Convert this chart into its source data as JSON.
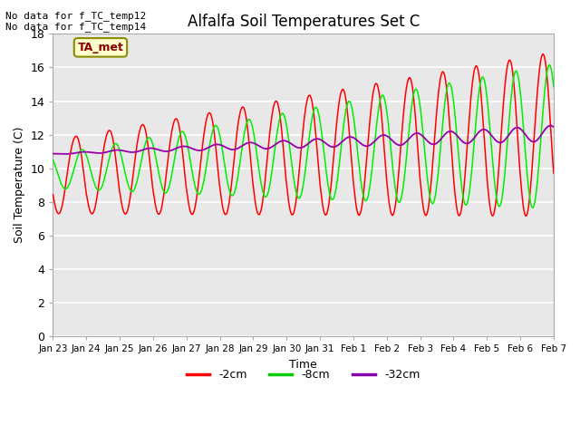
{
  "title": "Alfalfa Soil Temperatures Set C",
  "ylabel": "Soil Temperature (C)",
  "xlabel": "Time",
  "no_data_text": [
    "No data for f_TC_temp12",
    "No data for f_TC_temp14"
  ],
  "ta_met_label": "TA_met",
  "ylim": [
    0,
    18
  ],
  "yticks": [
    0,
    2,
    4,
    6,
    8,
    10,
    12,
    14,
    16,
    18
  ],
  "xtick_labels": [
    "Jan 23",
    "Jan 24",
    "Jan 25",
    "Jan 26",
    "Jan 27",
    "Jan 28",
    "Jan 29",
    "Jan 30",
    "Jan 31",
    "Feb 1",
    "Feb 2",
    "Feb 3",
    "Feb 4",
    "Feb 5",
    "Feb 6",
    "Feb 7"
  ],
  "plot_bg_color": "#e8e8e8",
  "fig_bg_color": "#ffffff",
  "legend_labels": [
    "-2cm",
    "-8cm",
    "-32cm"
  ],
  "legend_colors": [
    "#ff0000",
    "#00cc00",
    "#8800aa"
  ],
  "color_2cm": "#ff0000",
  "color_8cm": "#00ee00",
  "color_32cm": "#9900aa",
  "grid_color": "#ffffff"
}
